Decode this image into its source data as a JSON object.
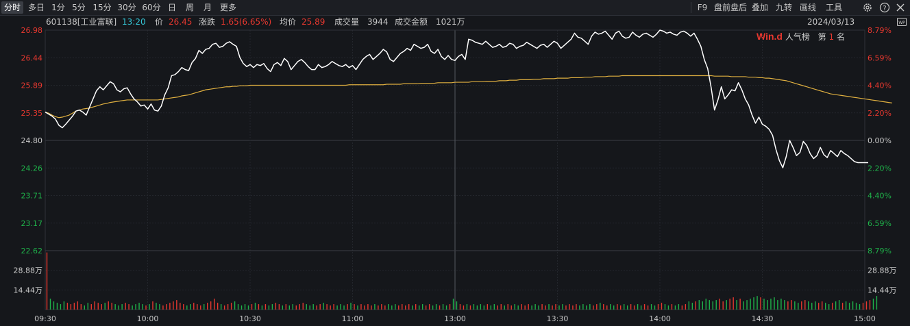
{
  "toolbar": {
    "left_items": [
      "分时",
      "多日",
      "1分",
      "5分",
      "15分",
      "30分",
      "60分",
      "日",
      "周",
      "月",
      "更多"
    ],
    "active_index": 0,
    "right_items": [
      "F9",
      "盘前盘后",
      "叠加",
      "九转",
      "画线",
      "工具"
    ],
    "right_icons": [
      "gear-icon",
      "help-icon",
      "close-icon",
      "wp-icon"
    ]
  },
  "info": {
    "code_name": "601138[工业富联]",
    "time": "13:20",
    "price_label": "价",
    "price": "26.45",
    "change_label": "涨跌",
    "change": "1.65(6.65%)",
    "avg_label": "均价",
    "avg": "25.89",
    "volume_label": "成交量",
    "volume": "3944",
    "amount_label": "成交金额",
    "amount": "1021万",
    "date": "2024/03/13"
  },
  "wind_badge": {
    "logo": "Win.d",
    "label": "人气榜",
    "rank_prefix": "第",
    "rank": "1",
    "rank_suffix": "名"
  },
  "colors": {
    "background": "#15171b",
    "price_line": "#ffffff",
    "avg_line": "#e0b040",
    "up": "#e8382f",
    "down": "#1fb34a",
    "neutral": "#c8c8c8",
    "grid": "#2a2d33",
    "accent_cyan": "#35c6d6"
  },
  "chart_data": {
    "type": "line",
    "prev_close": 24.8,
    "x_ticks": [
      "09:30",
      "10:00",
      "10:30",
      "11:00",
      "13:00",
      "13:30",
      "14:00",
      "14:30",
      "15:00"
    ],
    "y_left_ticks": [
      "26.98",
      "26.44",
      "25.89",
      "25.35",
      "24.80",
      "24.26",
      "23.71",
      "23.17",
      "22.62"
    ],
    "y_right_ticks": [
      "8.79%",
      "6.59%",
      "4.40%",
      "2.20%",
      "0.00%",
      "2.20%",
      "4.40%",
      "6.59%",
      "8.79%"
    ],
    "ylim": [
      22.62,
      26.98
    ],
    "volume_ticks": [
      "28.88万",
      "14.44万"
    ],
    "volume_ylim": [
      0,
      43.32
    ],
    "minutes_total": 240,
    "price": [
      25.36,
      25.32,
      25.28,
      25.22,
      25.1,
      25.05,
      25.12,
      25.2,
      25.28,
      25.38,
      25.4,
      25.36,
      25.3,
      25.46,
      25.62,
      25.78,
      25.86,
      25.8,
      25.88,
      25.96,
      25.92,
      25.8,
      25.76,
      25.82,
      25.84,
      25.72,
      25.62,
      25.56,
      25.48,
      25.5,
      25.42,
      25.52,
      25.4,
      25.38,
      25.48,
      25.7,
      25.84,
      26.08,
      26.1,
      26.16,
      26.24,
      26.2,
      26.18,
      26.34,
      26.42,
      26.58,
      26.52,
      26.6,
      26.62,
      26.7,
      26.72,
      26.64,
      26.66,
      26.72,
      26.75,
      26.7,
      26.66,
      26.44,
      26.32,
      26.26,
      26.3,
      26.24,
      26.3,
      26.28,
      26.32,
      26.22,
      26.16,
      26.3,
      26.34,
      26.28,
      26.42,
      26.36,
      26.2,
      26.28,
      26.36,
      26.4,
      26.34,
      26.26,
      26.2,
      26.2,
      26.3,
      26.24,
      26.26,
      26.3,
      26.36,
      26.32,
      26.28,
      26.26,
      26.3,
      26.24,
      26.28,
      26.2,
      26.3,
      26.4,
      26.46,
      26.5,
      26.4,
      26.46,
      26.52,
      26.6,
      26.55,
      26.4,
      26.36,
      26.44,
      26.52,
      26.56,
      26.62,
      26.58,
      26.7,
      26.66,
      26.62,
      26.64,
      26.7,
      26.56,
      26.52,
      26.6,
      26.46,
      26.4,
      26.48,
      26.4,
      26.38,
      26.46,
      26.5,
      26.4,
      26.8,
      26.78,
      26.74,
      26.72,
      26.7,
      26.76,
      26.7,
      26.64,
      26.66,
      26.7,
      26.64,
      26.66,
      26.72,
      26.7,
      26.62,
      26.66,
      26.68,
      26.74,
      26.7,
      26.66,
      26.62,
      26.68,
      26.7,
      26.64,
      26.7,
      26.76,
      26.72,
      26.62,
      26.68,
      26.74,
      26.8,
      26.92,
      26.84,
      26.82,
      26.76,
      26.7,
      26.86,
      26.94,
      26.9,
      26.92,
      26.96,
      26.88,
      26.8,
      26.92,
      26.96,
      26.86,
      26.82,
      26.84,
      26.94,
      26.88,
      26.84,
      26.9,
      26.92,
      26.88,
      26.84,
      26.9,
      26.98,
      26.96,
      26.92,
      26.94,
      26.9,
      26.88,
      26.94,
      26.96,
      26.92,
      26.86,
      26.92,
      26.8,
      26.66,
      26.4,
      26.22,
      25.85,
      25.4,
      25.6,
      25.86,
      25.62,
      25.7,
      25.8,
      25.78,
      25.94,
      25.8,
      25.62,
      25.5,
      25.3,
      25.14,
      25.26,
      25.12,
      25.08,
      25.02,
      24.9,
      24.62,
      24.4,
      24.26,
      24.48,
      24.8,
      24.66,
      24.5,
      24.56,
      24.78,
      24.7,
      24.54,
      24.44,
      24.5,
      24.66,
      24.52,
      24.46,
      24.6,
      24.54,
      24.48,
      24.6,
      24.54,
      24.5,
      24.44,
      24.38,
      24.36,
      24.36,
      24.36,
      24.36
    ],
    "avg": [
      25.36,
      25.34,
      25.3,
      25.27,
      25.25,
      25.26,
      25.28,
      25.3,
      25.34,
      25.38,
      25.4,
      25.42,
      25.43,
      25.44,
      25.46,
      25.48,
      25.5,
      25.52,
      25.53,
      25.55,
      25.56,
      25.57,
      25.58,
      25.59,
      25.6,
      25.6,
      25.6,
      25.6,
      25.6,
      25.6,
      25.6,
      25.6,
      25.6,
      25.6,
      25.61,
      25.62,
      25.63,
      25.64,
      25.65,
      25.66,
      25.68,
      25.69,
      25.7,
      25.72,
      25.74,
      25.76,
      25.78,
      25.8,
      25.81,
      25.82,
      25.83,
      25.84,
      25.85,
      25.86,
      25.86,
      25.87,
      25.87,
      25.88,
      25.88,
      25.88,
      25.89,
      25.89,
      25.89,
      25.89,
      25.89,
      25.89,
      25.89,
      25.89,
      25.89,
      25.89,
      25.89,
      25.89,
      25.89,
      25.89,
      25.89,
      25.89,
      25.89,
      25.89,
      25.89,
      25.89,
      25.89,
      25.89,
      25.89,
      25.89,
      25.89,
      25.89,
      25.89,
      25.89,
      25.89,
      25.9,
      25.9,
      25.9,
      25.9,
      25.9,
      25.9,
      25.9,
      25.9,
      25.9,
      25.9,
      25.9,
      25.91,
      25.91,
      25.91,
      25.91,
      25.91,
      25.92,
      25.92,
      25.92,
      25.92,
      25.92,
      25.93,
      25.93,
      25.93,
      25.93,
      25.93,
      25.94,
      25.94,
      25.94,
      25.94,
      25.94,
      25.95,
      25.95,
      25.95,
      25.95,
      25.95,
      25.96,
      25.96,
      25.96,
      25.96,
      25.97,
      25.97,
      25.97,
      25.97,
      25.98,
      25.98,
      25.98,
      25.99,
      25.99,
      25.99,
      26.0,
      26.0,
      26.0,
      26.0,
      26.01,
      26.01,
      26.01,
      26.02,
      26.02,
      26.02,
      26.02,
      26.03,
      26.03,
      26.03,
      26.03,
      26.04,
      26.04,
      26.04,
      26.04,
      26.05,
      26.05,
      26.05,
      26.06,
      26.06,
      26.06,
      26.06,
      26.07,
      26.07,
      26.07,
      26.07,
      26.08,
      26.08,
      26.08,
      26.08,
      26.08,
      26.08,
      26.08,
      26.08,
      26.08,
      26.08,
      26.08,
      26.08,
      26.08,
      26.08,
      26.08,
      26.08,
      26.08,
      26.08,
      26.08,
      26.08,
      26.08,
      26.08,
      26.08,
      26.08,
      26.08,
      26.08,
      26.08,
      26.07,
      26.07,
      26.07,
      26.07,
      26.07,
      26.06,
      26.06,
      26.06,
      26.06,
      26.06,
      26.05,
      26.05,
      26.05,
      26.04,
      26.04,
      26.03,
      26.03,
      26.02,
      26.01,
      26.0,
      25.99,
      25.98,
      25.96,
      25.94,
      25.92,
      25.9,
      25.88,
      25.86,
      25.84,
      25.82,
      25.8,
      25.78,
      25.76,
      25.74,
      25.72,
      25.71,
      25.7,
      25.69,
      25.68,
      25.67,
      25.66,
      25.65,
      25.64,
      25.63,
      25.62,
      25.61,
      25.6,
      25.59,
      25.58,
      25.57,
      25.56,
      25.55,
      25.54
    ],
    "volume": [
      42,
      8,
      6,
      5,
      4,
      6,
      5,
      4,
      5,
      6,
      4,
      3,
      5,
      4,
      6,
      5,
      4,
      5,
      6,
      5,
      4,
      3,
      4,
      5,
      4,
      3,
      4,
      5,
      4,
      3,
      4,
      6,
      5,
      4,
      3,
      4,
      5,
      6,
      7,
      5,
      4,
      3,
      4,
      5,
      4,
      3,
      4,
      5,
      6,
      8,
      5,
      4,
      3,
      4,
      5,
      6,
      4,
      3,
      4,
      3,
      4,
      5,
      4,
      3,
      4,
      3,
      4,
      5,
      4,
      3,
      4,
      3,
      4,
      3,
      4,
      5,
      4,
      3,
      4,
      3,
      4,
      5,
      4,
      3,
      4,
      3,
      4,
      3,
      4,
      5,
      4,
      3,
      4,
      3,
      4,
      3,
      4,
      3,
      4,
      3,
      4,
      3,
      4,
      3,
      4,
      3,
      4,
      3,
      4,
      3,
      4,
      3,
      4,
      3,
      4,
      3,
      4,
      3,
      4,
      8,
      6,
      4,
      3,
      4,
      3,
      4,
      3,
      4,
      3,
      4,
      3,
      4,
      3,
      4,
      3,
      4,
      3,
      4,
      3,
      4,
      3,
      4,
      3,
      4,
      3,
      4,
      3,
      4,
      3,
      4,
      3,
      4,
      3,
      4,
      3,
      4,
      3,
      4,
      3,
      4,
      3,
      4,
      5,
      4,
      3,
      4,
      3,
      4,
      3,
      4,
      3,
      4,
      3,
      4,
      3,
      4,
      3,
      4,
      3,
      4,
      5,
      4,
      3,
      4,
      3,
      4,
      3,
      4,
      6,
      5,
      6,
      7,
      6,
      8,
      7,
      6,
      7,
      8,
      6,
      7,
      8,
      9,
      7,
      8,
      6,
      7,
      8,
      9,
      10,
      9,
      8,
      7,
      8,
      9,
      7,
      8,
      7,
      6,
      7,
      6,
      5,
      6,
      7,
      6,
      5,
      6,
      5,
      6,
      5,
      4,
      5,
      6,
      7,
      5,
      6,
      5,
      6,
      5,
      4,
      5,
      6,
      7,
      8,
      10
    ]
  }
}
